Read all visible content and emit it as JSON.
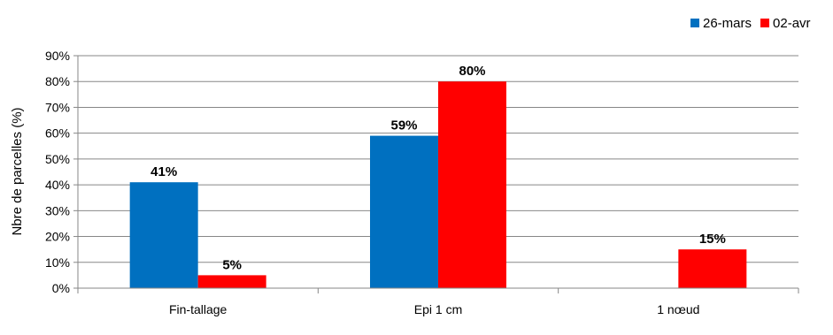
{
  "chart_data": {
    "type": "bar",
    "title": "",
    "xlabel": "",
    "ylabel": "Nbre de parcelles (%)",
    "categories": [
      "Fin-tallage",
      "Epi 1 cm",
      "1 nœud"
    ],
    "series": [
      {
        "name": "26-mars",
        "color": "#0070C0",
        "values": [
          41,
          59,
          null
        ],
        "labels": [
          "41%",
          "59%",
          ""
        ]
      },
      {
        "name": "02-avr",
        "color": "#FF0000",
        "values": [
          5,
          80,
          15
        ],
        "labels": [
          "5%",
          "80%",
          "15%"
        ]
      }
    ],
    "ylim": [
      0,
      90
    ],
    "yticks": [
      0,
      10,
      20,
      30,
      40,
      50,
      60,
      70,
      80,
      90
    ],
    "ytick_labels": [
      "0%",
      "10%",
      "20%",
      "30%",
      "40%",
      "50%",
      "60%",
      "70%",
      "80%",
      "90%"
    ],
    "grid": true,
    "legend_position": "top-right"
  }
}
